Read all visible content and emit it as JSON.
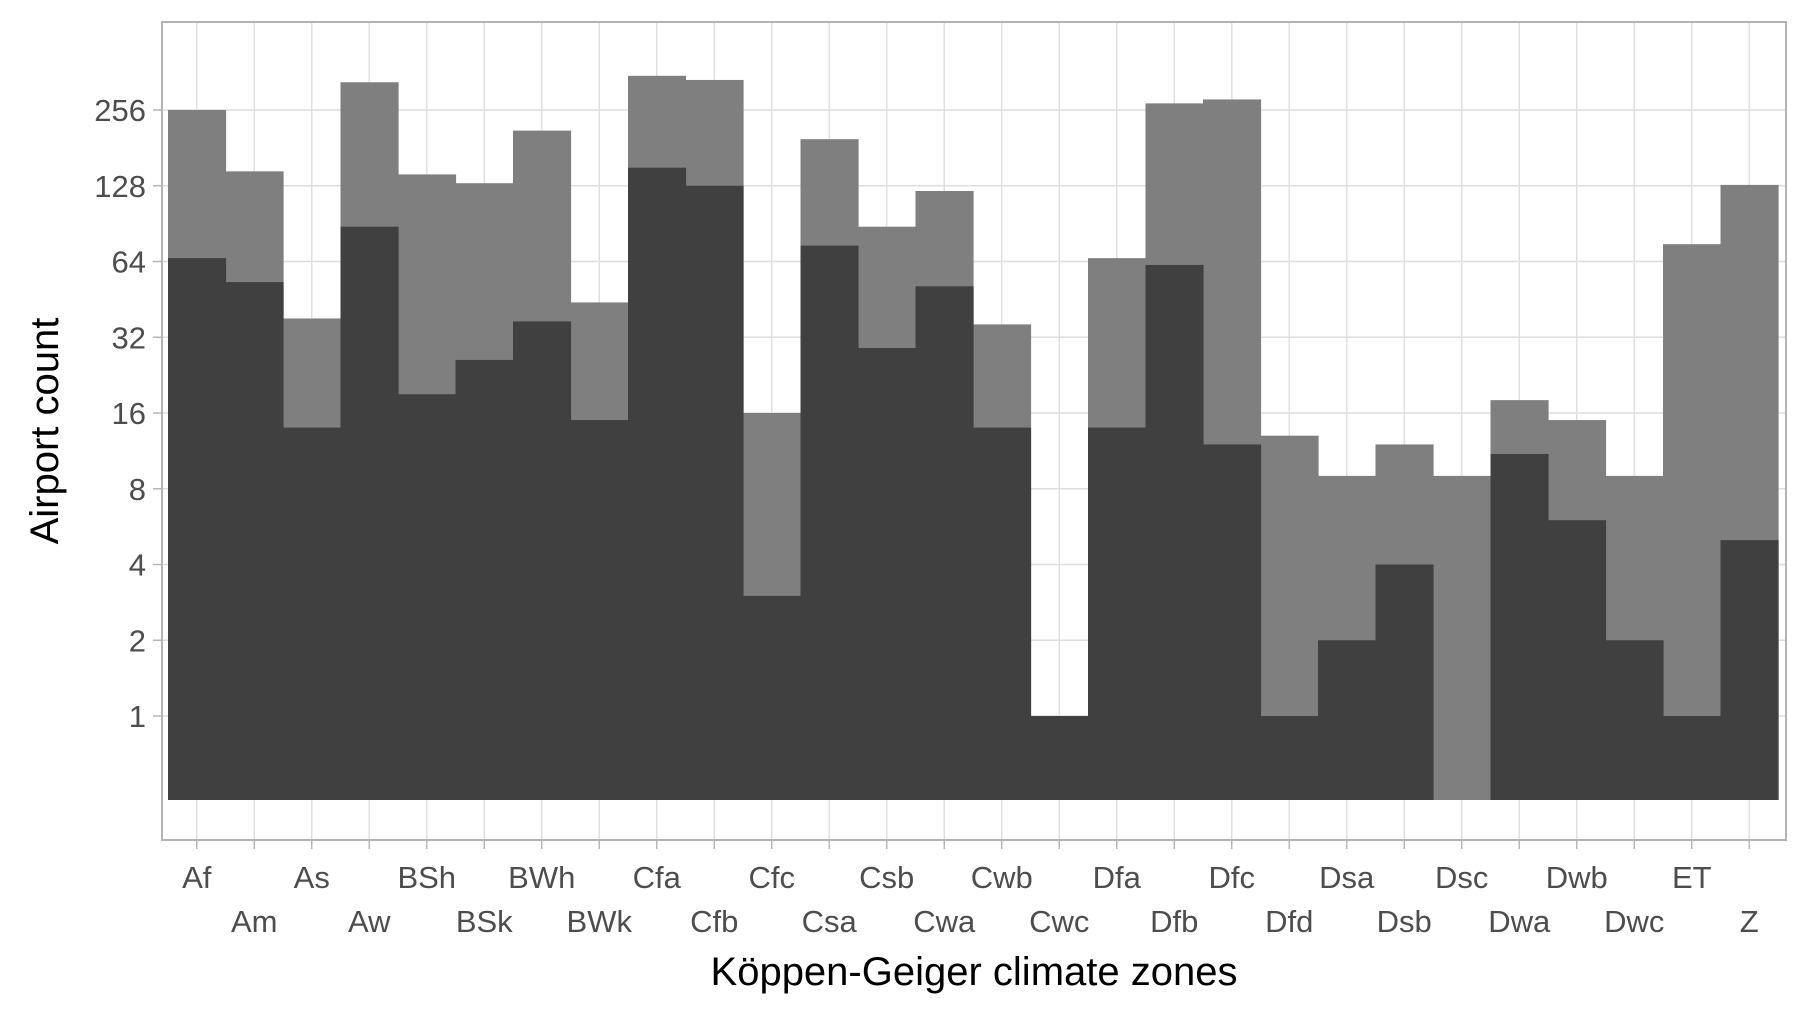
{
  "chart_data": {
    "type": "bar",
    "xlabel": "Köppen-Geiger climate zones",
    "ylabel": "Airport count",
    "y_scale": "log2",
    "y_ticks": [
      1,
      2,
      4,
      8,
      16,
      32,
      64,
      128,
      256
    ],
    "grid": true,
    "categories": [
      "Af",
      "Am",
      "As",
      "Aw",
      "BSh",
      "BSk",
      "BWh",
      "BWk",
      "Cfa",
      "Cfb",
      "Cfc",
      "Csa",
      "Csb",
      "Cwa",
      "Cwb",
      "Cwc",
      "Dfa",
      "Dfb",
      "Dfc",
      "Dfd",
      "Dsa",
      "Dsb",
      "Dsc",
      "Dwa",
      "Dwb",
      "Dwc",
      "ET",
      "Z"
    ],
    "series": [
      {
        "color": "#7f7f7f",
        "values": [
          256,
          146,
          38,
          330,
          142,
          131,
          212,
          44,
          350,
          337,
          16,
          196,
          88,
          122,
          36,
          1,
          66,
          272,
          282,
          13,
          9,
          12,
          9,
          18,
          15,
          9,
          75,
          129
        ]
      },
      {
        "color": "#404040",
        "values": [
          66,
          53,
          14,
          88,
          19,
          26,
          37,
          15,
          151,
          128,
          3,
          74,
          29,
          51,
          14,
          1,
          14,
          62,
          12,
          1,
          2,
          4,
          null,
          11,
          6,
          2,
          1,
          5
        ]
      }
    ]
  }
}
